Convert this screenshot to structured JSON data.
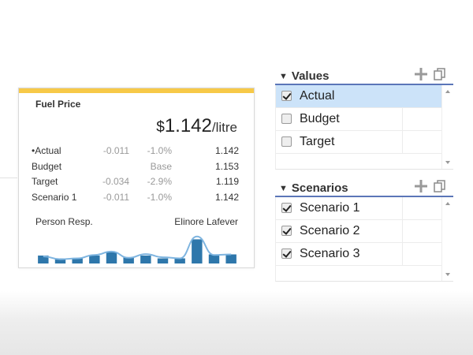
{
  "colors": {
    "card_accent": "#f7c948",
    "spark_bar": "#2e77ab",
    "spark_line": "#7fb5e0",
    "header_underline": "#5b76b8",
    "selected_row": "#cce3f9"
  },
  "card": {
    "title": "Fuel Price",
    "price": {
      "currency": "$",
      "value": "1.142",
      "unit": "/litre"
    },
    "rows": [
      {
        "name": "Actual",
        "active": true,
        "delta": "-0.011",
        "pct": "-1.0%",
        "value": "1.142"
      },
      {
        "name": "Budget",
        "active": false,
        "delta": "",
        "pct": "Base",
        "value": "1.153"
      },
      {
        "name": "Target",
        "active": false,
        "delta": "-0.034",
        "pct": "-2.9%",
        "value": "1.119"
      },
      {
        "name": "Scenario 1",
        "active": false,
        "delta": "-0.011",
        "pct": "-1.0%",
        "value": "1.142"
      }
    ],
    "person_label": "Person Resp.",
    "person_value": "Elinore Lafever",
    "sparkline": {
      "bars": [
        0.28,
        0.18,
        0.18,
        0.28,
        0.4,
        0.22,
        0.28,
        0.18,
        0.18,
        0.85,
        0.32,
        0.32
      ],
      "line": [
        0.25,
        0.15,
        0.18,
        0.3,
        0.42,
        0.2,
        0.33,
        0.22,
        0.18,
        0.95,
        0.3,
        0.32
      ]
    }
  },
  "values_panel": {
    "title": "Values",
    "add_icon": "plus-icon",
    "copy_icon": "copy-icon",
    "items": [
      {
        "label": "Actual",
        "checked": true,
        "selected": true
      },
      {
        "label": "Budget",
        "checked": false,
        "selected": false
      },
      {
        "label": "Target",
        "checked": false,
        "selected": false
      }
    ]
  },
  "scenarios_panel": {
    "title": "Scenarios",
    "add_icon": "plus-icon",
    "copy_icon": "copy-icon",
    "items": [
      {
        "label": "Scenario 1",
        "checked": true,
        "selected": false
      },
      {
        "label": "Scenario 2",
        "checked": true,
        "selected": false
      },
      {
        "label": "Scenario 3",
        "checked": true,
        "selected": false
      }
    ]
  }
}
